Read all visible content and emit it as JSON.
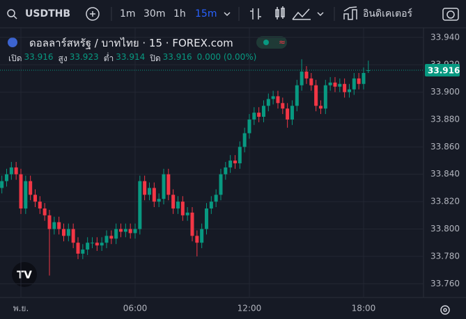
{
  "toolbar": {
    "symbol": "USDTHB",
    "intervals": [
      "1m",
      "30m",
      "1h",
      "15m"
    ],
    "indicators": "อินดิเคเตอร์"
  },
  "legend": {
    "open_label": "เปิด",
    "high_label": "สูง",
    "low_label": "ต่ำ",
    "close_label": "ปิด",
    "open": 33.916,
    "high": 33.923,
    "low": 33.914,
    "close": 33.916,
    "change": "0.000 (0.00%)"
  },
  "chart_data": {
    "type": "candlestick",
    "title": "ดอลลาร์สหรัฐ / บาทไทย · 15 · FOREX.com",
    "categories": [
      null,
      null,
      null,
      null,
      "พ.ย.",
      null,
      null,
      null,
      null,
      null,
      null,
      null,
      null,
      null,
      null,
      null,
      null,
      null,
      null,
      null,
      null,
      null,
      null,
      null,
      null,
      null,
      null,
      null,
      "06:00",
      null,
      null,
      null,
      null,
      null,
      null,
      null,
      null,
      null,
      null,
      null,
      null,
      null,
      null,
      null,
      null,
      null,
      null,
      null,
      null,
      null,
      null,
      null,
      "12:00",
      null,
      null,
      null,
      null,
      null,
      null,
      null,
      null,
      null,
      null,
      null,
      null,
      null,
      null,
      null,
      null,
      null,
      null,
      null,
      null,
      null,
      null,
      null,
      "18:00",
      null
    ],
    "open": [
      33.83,
      33.835,
      33.84,
      33.845,
      33.84,
      33.815,
      33.835,
      33.825,
      33.82,
      33.815,
      33.81,
      33.8,
      33.805,
      33.8,
      33.795,
      33.8,
      33.79,
      33.782,
      33.785,
      33.79,
      33.79,
      33.788,
      33.79,
      33.795,
      33.793,
      33.8,
      33.798,
      33.8,
      33.797,
      33.8,
      33.835,
      33.825,
      33.83,
      33.82,
      33.822,
      33.84,
      33.825,
      33.815,
      33.82,
      33.81,
      33.812,
      33.795,
      33.79,
      33.8,
      33.815,
      33.82,
      33.825,
      33.84,
      33.845,
      33.85,
      33.848,
      33.86,
      33.87,
      33.88,
      33.885,
      33.882,
      33.89,
      33.895,
      33.897,
      33.892,
      33.888,
      33.88,
      33.89,
      33.905,
      33.915,
      33.91,
      33.905,
      33.89,
      33.888,
      33.905,
      33.907,
      33.904,
      33.906,
      33.9,
      33.902,
      33.91,
      33.906,
      33.916
    ],
    "high": [
      33.839,
      33.844,
      33.849,
      33.849,
      33.844,
      33.839,
      33.839,
      33.829,
      33.824,
      33.819,
      33.814,
      33.809,
      33.809,
      33.804,
      33.804,
      33.804,
      33.794,
      33.789,
      33.794,
      33.794,
      33.794,
      33.794,
      33.799,
      33.799,
      33.804,
      33.804,
      33.804,
      33.804,
      33.804,
      33.839,
      33.839,
      33.834,
      33.834,
      33.826,
      33.844,
      33.844,
      33.829,
      33.824,
      33.824,
      33.816,
      33.816,
      33.799,
      33.804,
      33.819,
      33.824,
      33.829,
      33.844,
      33.849,
      33.854,
      33.854,
      33.864,
      33.874,
      33.884,
      33.889,
      33.889,
      33.894,
      33.899,
      33.901,
      33.901,
      33.896,
      33.892,
      33.894,
      33.909,
      33.924,
      33.919,
      33.914,
      33.909,
      33.894,
      33.909,
      33.911,
      33.911,
      33.91,
      33.91,
      33.906,
      33.914,
      33.914,
      33.918,
      33.923
    ],
    "low": [
      33.826,
      33.831,
      33.836,
      33.836,
      33.811,
      33.811,
      33.821,
      33.816,
      33.811,
      33.806,
      33.766,
      33.796,
      33.796,
      33.791,
      33.791,
      33.786,
      33.778,
      33.778,
      33.781,
      33.786,
      33.784,
      33.784,
      33.786,
      33.789,
      33.789,
      33.794,
      33.794,
      33.793,
      33.793,
      33.796,
      33.821,
      33.821,
      33.816,
      33.816,
      33.818,
      33.821,
      33.811,
      33.811,
      33.806,
      33.806,
      33.791,
      33.78,
      33.786,
      33.796,
      33.811,
      33.816,
      33.821,
      33.836,
      33.841,
      33.844,
      33.844,
      33.856,
      33.866,
      33.876,
      33.878,
      33.878,
      33.886,
      33.891,
      33.888,
      33.884,
      33.874,
      33.876,
      33.886,
      33.901,
      33.906,
      33.901,
      33.886,
      33.884,
      33.884,
      33.901,
      33.9,
      33.9,
      33.896,
      33.896,
      33.898,
      33.902,
      33.902,
      33.914
    ],
    "close": [
      33.835,
      33.84,
      33.845,
      33.84,
      33.815,
      33.835,
      33.825,
      33.82,
      33.815,
      33.81,
      33.8,
      33.805,
      33.8,
      33.795,
      33.8,
      33.79,
      33.782,
      33.785,
      33.79,
      33.79,
      33.788,
      33.79,
      33.795,
      33.793,
      33.8,
      33.798,
      33.8,
      33.797,
      33.8,
      33.835,
      33.825,
      33.83,
      33.82,
      33.822,
      33.84,
      33.825,
      33.815,
      33.82,
      33.81,
      33.812,
      33.795,
      33.79,
      33.8,
      33.815,
      33.82,
      33.825,
      33.84,
      33.845,
      33.85,
      33.848,
      33.86,
      33.87,
      33.88,
      33.885,
      33.882,
      33.89,
      33.895,
      33.897,
      33.892,
      33.888,
      33.88,
      33.89,
      33.905,
      33.915,
      33.91,
      33.905,
      33.89,
      33.888,
      33.905,
      33.907,
      33.904,
      33.906,
      33.9,
      33.902,
      33.91,
      33.906,
      33.914,
      33.916
    ],
    "up_color": "#089981",
    "down_color": "#f23645",
    "last_price": 33.916,
    "ylim": [
      33.75,
      33.947
    ],
    "yticks": [
      {
        "value": 33.76,
        "label": "33.760"
      },
      {
        "value": 33.78,
        "label": "33.780"
      },
      {
        "value": 33.8,
        "label": "33.800"
      },
      {
        "value": 33.82,
        "label": "33.820"
      },
      {
        "value": 33.84,
        "label": "33.840"
      },
      {
        "value": 33.86,
        "label": "33.860"
      },
      {
        "value": 33.88,
        "label": "33.880"
      },
      {
        "value": 33.9,
        "label": "33.900"
      },
      {
        "value": 33.92,
        "label": "33.920"
      },
      {
        "value": 33.94,
        "label": "33.940"
      }
    ],
    "grid": true
  }
}
